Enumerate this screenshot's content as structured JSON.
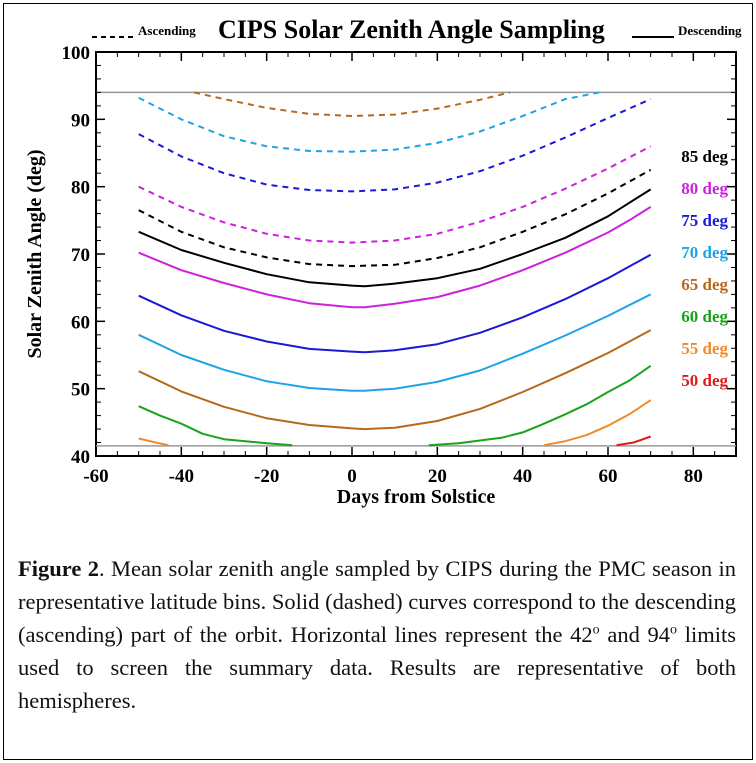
{
  "chart_data": {
    "type": "line",
    "title": "CIPS Solar Zenith Angle Sampling",
    "legend_top": {
      "dashed_label": "Ascending",
      "solid_label": "Descending",
      "placement": "top"
    },
    "xlabel": "Days from Solstice",
    "ylabel": "Solar Zenith Angle (deg)",
    "xlim": [
      -60,
      90
    ],
    "ylim": [
      40,
      100
    ],
    "x_ticks": [
      "-60",
      "-40",
      "-20",
      "0",
      "20",
      "40",
      "60",
      "80"
    ],
    "y_ticks": [
      "40",
      "50",
      "60",
      "70",
      "80",
      "90",
      "100"
    ],
    "reference_lines": [
      {
        "y": 41.5,
        "color": "#999999"
      },
      {
        "y": 94,
        "color": "#999999"
      }
    ],
    "grid": false,
    "legend_entries": [
      {
        "label": "85 deg",
        "color": "#000000"
      },
      {
        "label": "80 deg",
        "color": "#cc22dd"
      },
      {
        "label": "75 deg",
        "color": "#1a1ad6"
      },
      {
        "label": "70 deg",
        "color": "#1fa3e6"
      },
      {
        "label": "65 deg",
        "color": "#b8681a"
      },
      {
        "label": "60 deg",
        "color": "#1aa31a"
      },
      {
        "label": "55 deg",
        "color": "#f08a2a"
      },
      {
        "label": "50 deg",
        "color": "#e01a1a"
      }
    ],
    "legend_placement": "right",
    "series": [
      {
        "lat": "85",
        "part": "descending",
        "style": "solid",
        "color": "#000000",
        "x": [
          -50,
          -40,
          -30,
          -20,
          -10,
          0,
          3,
          10,
          20,
          30,
          40,
          50,
          60,
          65,
          70
        ],
        "y": [
          73.3,
          70.6,
          68.7,
          67.0,
          65.8,
          65.3,
          65.2,
          65.6,
          66.4,
          67.8,
          70.0,
          72.4,
          75.6,
          77.6,
          79.6
        ]
      },
      {
        "lat": "85",
        "part": "ascending",
        "style": "dashed",
        "color": "#000000",
        "x": [
          -50,
          -40,
          -30,
          -20,
          -10,
          0,
          10,
          20,
          30,
          40,
          50,
          60,
          70
        ],
        "y": [
          76.5,
          73.3,
          71.0,
          69.5,
          68.5,
          68.2,
          68.4,
          69.4,
          71.0,
          73.3,
          75.9,
          79.0,
          82.5
        ]
      },
      {
        "lat": "80",
        "part": "descending",
        "style": "solid",
        "color": "#cc22dd",
        "x": [
          -50,
          -40,
          -30,
          -20,
          -10,
          0,
          3,
          10,
          20,
          30,
          40,
          50,
          60,
          65,
          70
        ],
        "y": [
          70.2,
          67.6,
          65.7,
          64.0,
          62.7,
          62.1,
          62.1,
          62.6,
          63.6,
          65.3,
          67.6,
          70.2,
          73.2,
          75.0,
          77.0
        ]
      },
      {
        "lat": "80",
        "part": "ascending",
        "style": "dashed",
        "color": "#cc22dd",
        "x": [
          -50,
          -40,
          -30,
          -20,
          -10,
          0,
          10,
          20,
          30,
          40,
          50,
          60,
          70
        ],
        "y": [
          80.0,
          77.0,
          74.7,
          73.0,
          72.0,
          71.7,
          72.0,
          73.0,
          74.8,
          77.0,
          79.7,
          82.7,
          86.0
        ]
      },
      {
        "lat": "75",
        "part": "descending",
        "style": "solid",
        "color": "#1a1ad6",
        "x": [
          -50,
          -40,
          -30,
          -20,
          -10,
          0,
          3,
          10,
          20,
          30,
          40,
          50,
          60,
          70
        ],
        "y": [
          63.8,
          60.9,
          58.6,
          57.0,
          55.9,
          55.5,
          55.4,
          55.7,
          56.6,
          58.3,
          60.6,
          63.3,
          66.4,
          69.9
        ]
      },
      {
        "lat": "75",
        "part": "ascending",
        "style": "dashed",
        "color": "#1a1ad6",
        "x": [
          -50,
          -40,
          -30,
          -20,
          -10,
          0,
          10,
          20,
          30,
          40,
          50,
          60,
          70
        ],
        "y": [
          87.8,
          84.5,
          82.0,
          80.3,
          79.5,
          79.3,
          79.6,
          80.6,
          82.3,
          84.6,
          87.3,
          90.2,
          93.0
        ]
      },
      {
        "lat": "70",
        "part": "descending",
        "style": "solid",
        "color": "#1fa3e6",
        "x": [
          -50,
          -40,
          -30,
          -20,
          -10,
          0,
          3,
          10,
          20,
          30,
          40,
          50,
          60,
          70
        ],
        "y": [
          58.0,
          55.0,
          52.8,
          51.1,
          50.1,
          49.7,
          49.7,
          50.0,
          51.0,
          52.7,
          55.2,
          57.9,
          60.8,
          64.0
        ]
      },
      {
        "lat": "70",
        "part": "ascending",
        "style": "dashed",
        "color": "#1fa3e6",
        "x": [
          -50,
          -40,
          -30,
          -20,
          -10,
          0,
          10,
          20,
          30,
          40,
          50,
          58
        ],
        "y": [
          93.2,
          90.0,
          87.5,
          86.0,
          85.3,
          85.2,
          85.5,
          86.5,
          88.2,
          90.5,
          93.0,
          94.0
        ]
      },
      {
        "lat": "65",
        "part": "descending",
        "style": "solid",
        "color": "#b8681a",
        "x": [
          -50,
          -40,
          -30,
          -20,
          -10,
          0,
          3,
          10,
          20,
          30,
          40,
          50,
          60,
          70
        ],
        "y": [
          52.6,
          49.6,
          47.3,
          45.6,
          44.6,
          44.1,
          44.0,
          44.2,
          45.2,
          47.0,
          49.5,
          52.3,
          55.3,
          58.7
        ]
      },
      {
        "lat": "65",
        "part": "ascending",
        "style": "dashed",
        "color": "#b8681a",
        "x": [
          -37,
          -30,
          -20,
          -10,
          0,
          10,
          20,
          30,
          37
        ],
        "y": [
          94.0,
          93.0,
          91.7,
          90.8,
          90.5,
          90.7,
          91.6,
          92.9,
          94.0
        ]
      },
      {
        "lat": "60",
        "part": "descending",
        "style": "solid",
        "color": "#1aa31a",
        "x": [
          -50,
          -45,
          -40,
          -35,
          -30,
          -25,
          -20,
          -14
        ],
        "y": [
          47.4,
          46.0,
          44.8,
          43.3,
          42.5,
          42.2,
          41.9,
          41.6
        ]
      },
      {
        "lat": "60",
        "part": "descending",
        "style": "solid",
        "color": "#1aa31a",
        "x": [
          18,
          25,
          30,
          35,
          40,
          45,
          50,
          55,
          60,
          65,
          70
        ],
        "y": [
          41.6,
          41.9,
          42.3,
          42.7,
          43.5,
          44.8,
          46.2,
          47.7,
          49.5,
          51.2,
          53.4
        ]
      },
      {
        "lat": "55",
        "part": "descending",
        "style": "solid",
        "color": "#f08a2a",
        "x": [
          -50,
          -46,
          -43
        ],
        "y": [
          42.6,
          42.0,
          41.6
        ]
      },
      {
        "lat": "55",
        "part": "descending",
        "style": "solid",
        "color": "#f08a2a",
        "x": [
          45,
          50,
          55,
          60,
          65,
          70
        ],
        "y": [
          41.6,
          42.2,
          43.1,
          44.5,
          46.2,
          48.3
        ]
      },
      {
        "lat": "50",
        "part": "descending",
        "style": "solid",
        "color": "#e01a1a",
        "x": [
          62,
          66,
          70
        ],
        "y": [
          41.6,
          42.0,
          42.9
        ]
      }
    ]
  },
  "caption": {
    "figure_label": "Figure 2",
    "text_1": ". Mean solar zenith angle sampled by CIPS during the PMC season in representative latitude bins. Solid (dashed) curves correspond to the descending (ascending) part of the orbit. Horizontal lines represent the 42",
    "sup_1": "o",
    "text_2": " and 94",
    "sup_2": "o",
    "text_3": " limits used to screen the summary data. Results are representative of both hemispheres."
  }
}
